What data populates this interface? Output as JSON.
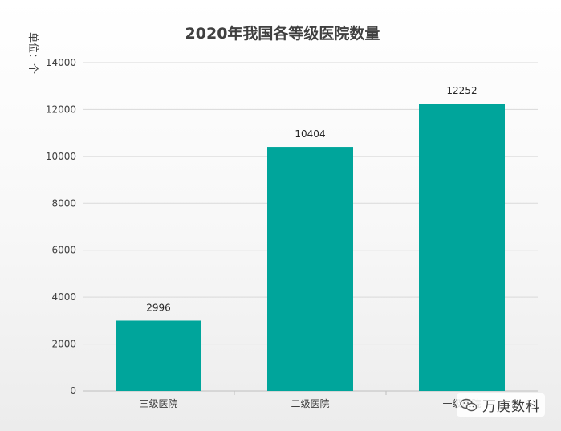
{
  "chart_data": {
    "type": "bar",
    "title": "2020年我国各等级医院数量",
    "ylabel": "单位：个",
    "xlabel": "",
    "categories": [
      "三级医院",
      "二级医院",
      "一级医院"
    ],
    "values": [
      2996,
      10404,
      12252
    ],
    "data_labels": [
      "2996",
      "10404",
      "12252"
    ],
    "ylim": [
      0,
      14000
    ],
    "yticks": [
      0,
      2000,
      4000,
      6000,
      8000,
      10000,
      12000,
      14000
    ],
    "grid": true,
    "legend": "none",
    "bar_color": "#00a59b"
  },
  "watermark": {
    "icon": "wechat-icon",
    "text": "万庚数科"
  }
}
